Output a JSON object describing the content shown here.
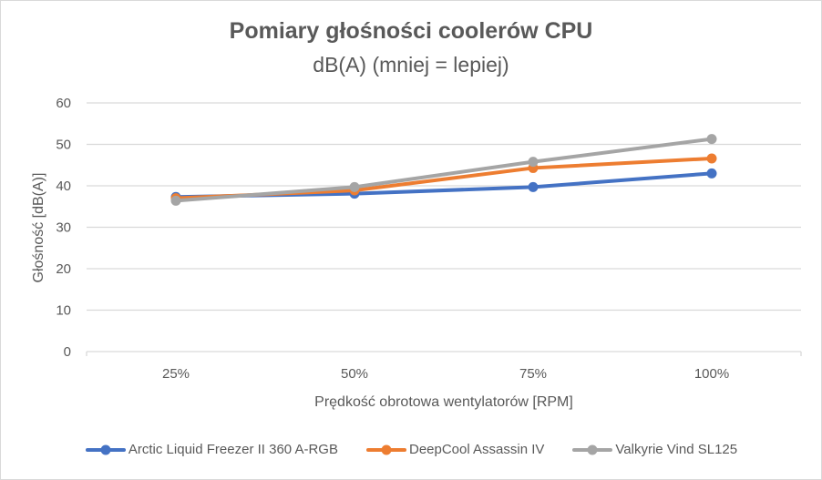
{
  "chart_data": {
    "type": "line",
    "title": "Pomiary głośności coolerów CPU",
    "subtitle": "dB(A) (mniej = lepiej)",
    "xlabel": "Prędkość obrotowa wentylatorów [RPM]",
    "ylabel": "Głośność [dB(A)]",
    "categories": [
      "25%",
      "50%",
      "75%",
      "100%"
    ],
    "ylim": [
      0,
      60
    ],
    "yticks": [
      0,
      10,
      20,
      30,
      40,
      50,
      60
    ],
    "grid": true,
    "legend_position": "bottom",
    "series": [
      {
        "name": "Arctic Liquid Freezer II 360 A-RGB",
        "color": "#4472c4",
        "values": [
          37.3,
          38.1,
          39.7,
          43.0
        ]
      },
      {
        "name": "DeepCool Assassin IV",
        "color": "#ed7d31",
        "values": [
          37.0,
          38.9,
          44.3,
          46.6
        ]
      },
      {
        "name": "Valkyrie Vind SL125",
        "color": "#a5a5a5",
        "values": [
          36.4,
          39.7,
          45.8,
          51.3
        ]
      }
    ]
  }
}
